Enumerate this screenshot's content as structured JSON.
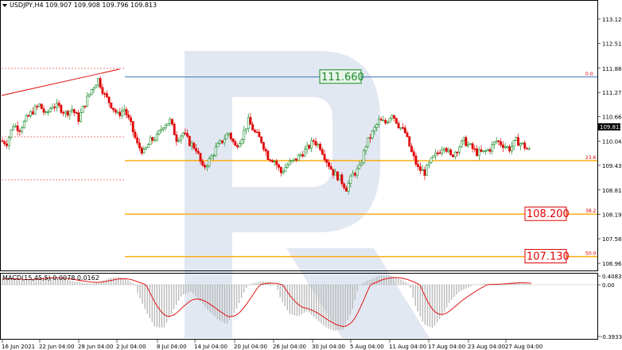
{
  "header": {
    "title": "USDJPY,H4  109.907 109.908 109.796 109.813"
  },
  "indicator": {
    "title": "MACD(15,45,5) 0.0078 0.0162",
    "ticks": [
      "0.4083",
      "0.00",
      "-0.3933"
    ]
  },
  "price_axis": {
    "ticks": [
      "113.120",
      "112.510",
      "111.880",
      "111.270",
      "110.660",
      "110.040",
      "109.430",
      "108.810",
      "108.190",
      "107.580",
      "106.960"
    ],
    "current_price": "109.813"
  },
  "time_axis": {
    "labels": [
      "16 Jun 2021",
      "22 Jun 04:00",
      "28 Jun 04:00",
      "2 Jul 04:00",
      "8 Jul 04:00",
      "14 Jul 04:00",
      "20 Jul 04:00",
      "26 Jul 04:00",
      "30 Jul 04:00",
      "5 Aug 04:00",
      "11 Aug 04:00",
      "17 Aug 04:00",
      "23 Aug 04:00",
      "27 Aug 04:00"
    ]
  },
  "levels": [
    {
      "price_label": "111.660",
      "fib_label": "0.0",
      "price": 111.66,
      "color": "#3a73b8",
      "box_color": "#1a8a2c"
    },
    {
      "fib_label": "23.6",
      "price": 109.55,
      "color": "#ffa500"
    },
    {
      "price_label": "108.200",
      "fib_label": "38.2",
      "price": 108.2,
      "color": "#ffa500",
      "box_color": "#e00000"
    },
    {
      "price_label": "107.130",
      "fib_label": "50.0",
      "price": 107.13,
      "color": "#ffa500",
      "box_color": "#e00000"
    }
  ],
  "colors": {
    "bull": "#1a8a2c",
    "bear": "#e00000",
    "histogram": "#b9b9b9",
    "signal": "#e00000",
    "watermark": "#dfe6f1"
  },
  "chart_data": {
    "type": "candlestick",
    "symbol": "USDJPY",
    "timeframe": "H4",
    "ylim": [
      106.78,
      113.5
    ],
    "ohlc_path": [
      110.05,
      110.0,
      110.45,
      110.35,
      110.6,
      110.8,
      110.95,
      110.7,
      110.95,
      110.9,
      110.75,
      110.85,
      110.6,
      111.0,
      111.35,
      111.6,
      111.2,
      110.95,
      110.7,
      110.85,
      110.45,
      109.95,
      109.75,
      110.05,
      110.15,
      110.45,
      110.55,
      110.1,
      110.25,
      110.0,
      109.85,
      109.35,
      109.55,
      109.85,
      110.05,
      110.25,
      109.9,
      110.15,
      110.55,
      110.25,
      110.05,
      109.65,
      109.55,
      109.25,
      109.45,
      109.55,
      109.7,
      109.85,
      110.05,
      109.9,
      109.55,
      109.25,
      109.1,
      108.85,
      109.2,
      109.35,
      109.95,
      110.25,
      110.55,
      110.5,
      110.75,
      110.45,
      110.25,
      109.75,
      109.35,
      109.25,
      109.55,
      109.75,
      109.95,
      109.65,
      109.85,
      110.05,
      109.9,
      109.75,
      109.75,
      109.85,
      110.05,
      109.95,
      109.85,
      110.05,
      109.95,
      109.8
    ],
    "macd_hist": [
      0.25,
      0.3,
      0.18,
      0.22,
      0.3,
      0.34,
      0.32,
      0.24,
      0.14,
      0.08,
      0.05,
      0.15,
      0.3,
      0.35,
      0.2,
      -0.05,
      -0.2,
      -0.32,
      -0.33,
      -0.2,
      -0.08,
      -0.05,
      -0.12,
      -0.2,
      -0.26,
      -0.3,
      -0.2,
      -0.05,
      0.08,
      0.15,
      0.12,
      -0.1,
      -0.22,
      -0.24,
      -0.2,
      -0.26,
      -0.32,
      -0.35,
      -0.34,
      -0.2,
      0.05,
      0.22,
      0.4,
      0.42,
      0.32,
      0.12,
      -0.15,
      -0.3,
      -0.33,
      -0.24,
      -0.12,
      -0.05,
      -0.02,
      0.02,
      0.05,
      0.04,
      0.06,
      0.12,
      0.1,
      0.02
    ],
    "macd_value": 0.0078,
    "signal_value": 0.0162,
    "macd_ylim": [
      -0.3933,
      0.4083
    ]
  }
}
